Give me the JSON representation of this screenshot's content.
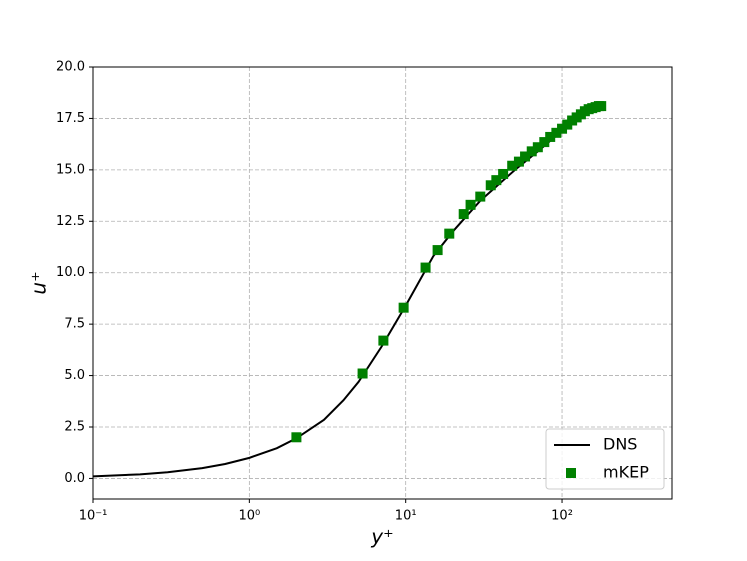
{
  "chart_data": {
    "type": "line",
    "x_label": "y⁺",
    "y_label": "u⁺",
    "xscale": "log",
    "xlim": [
      0.1,
      505
    ],
    "ylim": [
      -1,
      20
    ],
    "xticks": [
      {
        "value": 0.1,
        "label": "10⁻¹"
      },
      {
        "value": 1,
        "label": "10⁰"
      },
      {
        "value": 10,
        "label": "10¹"
      },
      {
        "value": 100,
        "label": "10²"
      }
    ],
    "yticks": [
      {
        "value": 0,
        "label": "0.0"
      },
      2.5,
      {
        "value": 5,
        "label": "5.0"
      },
      7.5,
      {
        "value": 10,
        "label": "10.0"
      },
      12.5,
      {
        "value": 15,
        "label": "15.0"
      },
      17.5,
      {
        "value": 20,
        "label": "20.0"
      }
    ],
    "grid": true,
    "legend": "lower right",
    "series": [
      {
        "name": "DNS",
        "kind": "line",
        "color": "#000000",
        "x": [
          0.1,
          0.2,
          0.3,
          0.5,
          0.7,
          1,
          1.5,
          2,
          3,
          4,
          5,
          7,
          10,
          15,
          20,
          30,
          50,
          70,
          100,
          150,
          180
        ],
        "values": [
          0.1,
          0.2,
          0.3,
          0.5,
          0.7,
          1.0,
          1.47,
          1.95,
          2.85,
          3.8,
          4.7,
          6.4,
          8.4,
          10.8,
          12.0,
          13.5,
          15.0,
          15.9,
          16.9,
          17.9,
          18.2
        ]
      },
      {
        "name": "mKEP",
        "kind": "scatter",
        "color": "#008000",
        "x": [
          2.0,
          5.3,
          7.2,
          9.7,
          13.4,
          16,
          19,
          23.5,
          26,
          30,
          35,
          38,
          42,
          48,
          53,
          58,
          64,
          70,
          77,
          84,
          92,
          100,
          108,
          116,
          124,
          132,
          140,
          148,
          156,
          164,
          172,
          178
        ],
        "values": [
          2.0,
          5.1,
          6.7,
          8.3,
          10.25,
          11.1,
          11.9,
          12.85,
          13.3,
          13.7,
          14.25,
          14.5,
          14.8,
          15.2,
          15.4,
          15.65,
          15.9,
          16.1,
          16.35,
          16.6,
          16.8,
          17.0,
          17.2,
          17.4,
          17.55,
          17.7,
          17.85,
          17.95,
          18.0,
          18.05,
          18.1,
          18.1
        ]
      }
    ]
  }
}
